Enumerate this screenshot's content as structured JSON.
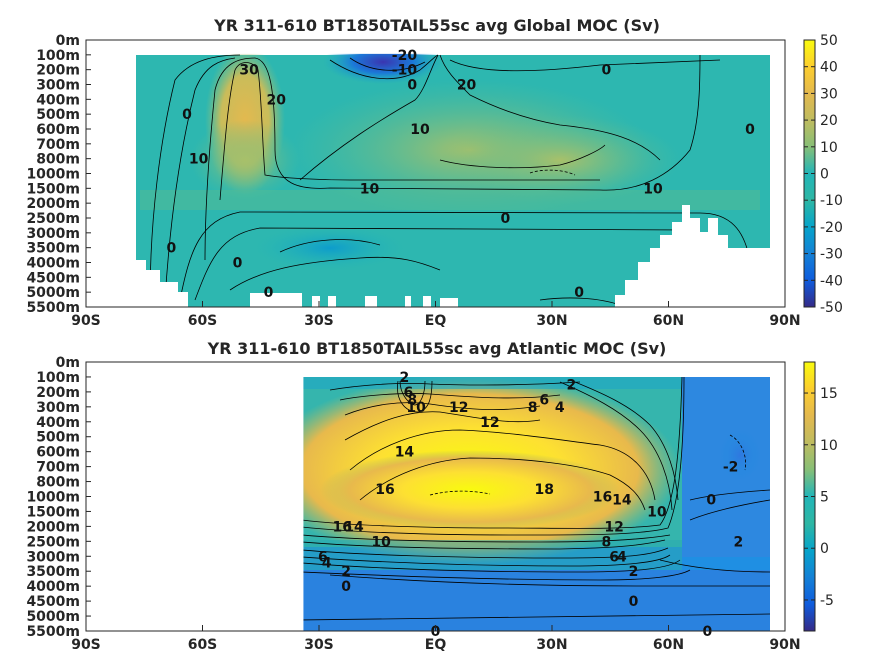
{
  "chart_data": [
    {
      "type": "heatmap",
      "title": "YR 311-610 BT1850TAIL55sc avg  Global MOC (Sv)",
      "x_ticks": [
        "90S",
        "60S",
        "30S",
        "EQ",
        "30N",
        "60N",
        "90N"
      ],
      "x_values": [
        -90,
        -60,
        -30,
        0,
        30,
        60,
        90
      ],
      "xlim": [
        -90,
        90
      ],
      "y_ticks": [
        "0m",
        "100m",
        "200m",
        "300m",
        "400m",
        "500m",
        "600m",
        "700m",
        "800m",
        "1000m",
        "1500m",
        "2000m",
        "2500m",
        "3000m",
        "3500m",
        "4000m",
        "4500m",
        "5000m",
        "5500m"
      ],
      "colorbar": {
        "ticks": [
          "50",
          "40",
          "30",
          "20",
          "10",
          "0",
          "-10",
          "-20",
          "-30",
          "-40",
          "-50"
        ],
        "range": [
          -50,
          50
        ],
        "colormap": "parula"
      },
      "contour_labels": [
        {
          "text": "30",
          "lat": -48,
          "depth": 200
        },
        {
          "text": "20",
          "lat": -41,
          "depth": 400
        },
        {
          "text": "0",
          "lat": -64,
          "depth": 500
        },
        {
          "text": "10",
          "lat": -61,
          "depth": 800
        },
        {
          "text": "-20",
          "lat": -8,
          "depth": 100
        },
        {
          "text": "-10",
          "lat": -8,
          "depth": 200
        },
        {
          "text": "0",
          "lat": -6,
          "depth": 300
        },
        {
          "text": "20",
          "lat": 8,
          "depth": 300
        },
        {
          "text": "0",
          "lat": 44,
          "depth": 200
        },
        {
          "text": "10",
          "lat": -4,
          "depth": 600
        },
        {
          "text": "0",
          "lat": 81,
          "depth": 600
        },
        {
          "text": "10",
          "lat": -17,
          "depth": 1500
        },
        {
          "text": "10",
          "lat": 56,
          "depth": 1500
        },
        {
          "text": "0",
          "lat": 18,
          "depth": 2500
        },
        {
          "text": "0",
          "lat": -68,
          "depth": 3500
        },
        {
          "text": "0",
          "lat": -51,
          "depth": 4000
        },
        {
          "text": "0",
          "lat": -43,
          "depth": 5000
        },
        {
          "text": "0",
          "lat": 37,
          "depth": 5000
        }
      ],
      "lat_range": [
        -80,
        87
      ]
    },
    {
      "type": "heatmap",
      "title": "YR 311-610 BT1850TAIL55sc avg  Atlantic MOC (Sv)",
      "x_ticks": [
        "90S",
        "60S",
        "30S",
        "EQ",
        "30N",
        "60N",
        "90N"
      ],
      "x_values": [
        -90,
        -60,
        -30,
        0,
        30,
        60,
        90
      ],
      "xlim": [
        -90,
        90
      ],
      "y_ticks": [
        "0m",
        "100m",
        "200m",
        "300m",
        "400m",
        "500m",
        "600m",
        "700m",
        "800m",
        "1000m",
        "1500m",
        "2000m",
        "2500m",
        "3000m",
        "3500m",
        "4000m",
        "4500m",
        "5000m",
        "5500m"
      ],
      "colorbar": {
        "ticks": [
          "15",
          "10",
          "5",
          "0",
          "-5"
        ],
        "range": [
          -8,
          18
        ],
        "colormap": "parula"
      },
      "contour_labels": [
        {
          "text": "2",
          "lat": -8,
          "depth": 100
        },
        {
          "text": "6",
          "lat": -7,
          "depth": 200
        },
        {
          "text": "8",
          "lat": -6,
          "depth": 250
        },
        {
          "text": "10",
          "lat": -5,
          "depth": 300
        },
        {
          "text": "12",
          "lat": 6,
          "depth": 300
        },
        {
          "text": "12",
          "lat": 14,
          "depth": 400
        },
        {
          "text": "8",
          "lat": 25,
          "depth": 300
        },
        {
          "text": "6",
          "lat": 28,
          "depth": 250
        },
        {
          "text": "4",
          "lat": 32,
          "depth": 300
        },
        {
          "text": "2",
          "lat": 35,
          "depth": 150
        },
        {
          "text": "14",
          "lat": -8,
          "depth": 600
        },
        {
          "text": "-2",
          "lat": 76,
          "depth": 700
        },
        {
          "text": "16",
          "lat": -13,
          "depth": 900
        },
        {
          "text": "18",
          "lat": 28,
          "depth": 900
        },
        {
          "text": "16",
          "lat": 43,
          "depth": 1000
        },
        {
          "text": "14",
          "lat": 48,
          "depth": 1100
        },
        {
          "text": "10",
          "lat": 57,
          "depth": 1500
        },
        {
          "text": "0",
          "lat": 71,
          "depth": 1100
        },
        {
          "text": "16",
          "lat": -24,
          "depth": 2000
        },
        {
          "text": "14",
          "lat": -21,
          "depth": 2000
        },
        {
          "text": "10",
          "lat": -14,
          "depth": 2500
        },
        {
          "text": "12",
          "lat": 46,
          "depth": 2000
        },
        {
          "text": "2",
          "lat": 78,
          "depth": 2500
        },
        {
          "text": "8",
          "lat": 44,
          "depth": 2500
        },
        {
          "text": "6",
          "lat": 46,
          "depth": 3000
        },
        {
          "text": "4",
          "lat": 48,
          "depth": 3000
        },
        {
          "text": "2",
          "lat": 51,
          "depth": 3500
        },
        {
          "text": "6",
          "lat": -29,
          "depth": 3000
        },
        {
          "text": "4",
          "lat": -28,
          "depth": 3200
        },
        {
          "text": "2",
          "lat": -23,
          "depth": 3500
        },
        {
          "text": "0",
          "lat": -23,
          "depth": 4000
        },
        {
          "text": "0",
          "lat": 51,
          "depth": 4500
        },
        {
          "text": "0",
          "lat": 0,
          "depth": 5500
        },
        {
          "text": "0",
          "lat": 70,
          "depth": 5500
        }
      ],
      "lat_range": [
        -34,
        87
      ]
    }
  ]
}
